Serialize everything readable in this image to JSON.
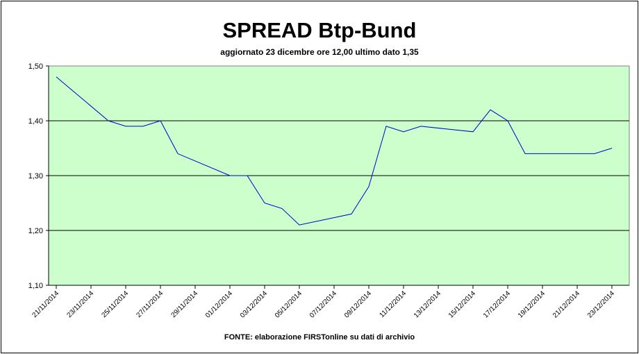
{
  "chart_data": {
    "type": "line",
    "title": "SPREAD Btp-Bund",
    "subtitle": "aggiornato 23 dicembre ore 12,00  ultimo dato  1,35",
    "source": "FONTE: elaborazione FIRSTonline su dati di archivio",
    "ylim": [
      1.1,
      1.5
    ],
    "y_ticks": [
      1.1,
      1.2,
      1.3,
      1.4,
      1.5
    ],
    "y_tick_labels": [
      "1,10",
      "1,20",
      "1,30",
      "1,40",
      "1,50"
    ],
    "x_tick_labels": [
      "21/11/2014",
      "23/11/2014",
      "25/11/2014",
      "27/11/2014",
      "29/11/2014",
      "01/12/2014",
      "03/12/2014",
      "05/12/2014",
      "07/12/2014",
      "09/12/2014",
      "11/12/2014",
      "13/12/2014",
      "15/12/2014",
      "17/12/2014",
      "19/12/2014",
      "21/12/2014",
      "23/12/2014"
    ],
    "grid": true,
    "plot_background": "#ccffcc",
    "line_color": "#0000cc",
    "series": [
      {
        "x": [
          "2014-11-21",
          "2014-11-24",
          "2014-11-25",
          "2014-11-26",
          "2014-11-27",
          "2014-11-28",
          "2014-12-01",
          "2014-12-02",
          "2014-12-03",
          "2014-12-04",
          "2014-12-05",
          "2014-12-08",
          "2014-12-09",
          "2014-12-10",
          "2014-12-11",
          "2014-12-12",
          "2014-12-15",
          "2014-12-16",
          "2014-12-17",
          "2014-12-18",
          "2014-12-19",
          "2014-12-22",
          "2014-12-23"
        ],
        "values": [
          1.48,
          1.4,
          1.39,
          1.39,
          1.4,
          1.34,
          1.3,
          1.3,
          1.25,
          1.24,
          1.21,
          1.23,
          1.28,
          1.39,
          1.38,
          1.39,
          1.38,
          1.42,
          1.4,
          1.34,
          1.34,
          1.34,
          1.35
        ]
      }
    ]
  }
}
